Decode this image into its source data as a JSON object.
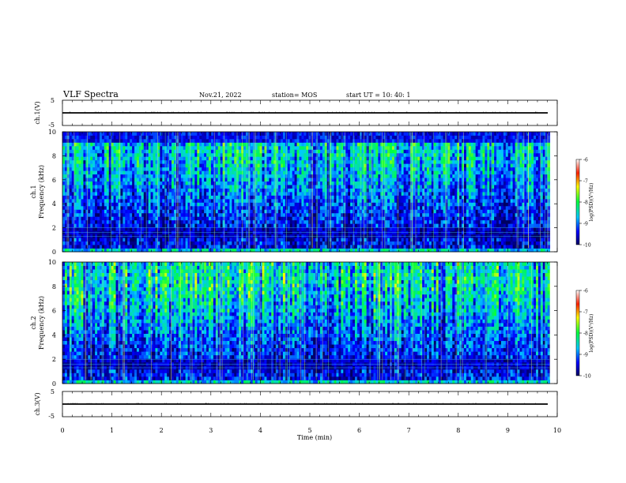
{
  "header": {
    "title": "VLF Spectra",
    "date": "Nov.21, 2022",
    "station": "station= MOS",
    "start": "start  UT  =   10: 40: 1"
  },
  "chart_data": [
    {
      "type": "line",
      "panel": "waveform-ch1",
      "ylabel": "ch.1(V)",
      "ylim": [
        -5,
        5
      ],
      "yticks": [
        "5",
        "-5"
      ],
      "xlim": [
        0,
        10
      ],
      "series": [
        {
          "values_description_level": 0
        }
      ]
    },
    {
      "type": "heatmap",
      "panel": "spectrogram-ch1",
      "ylabel": "ch.1",
      "ylabel2": "Frequency (kHz)",
      "ylim": [
        0,
        10
      ],
      "yticks": [
        "0",
        "2",
        "4",
        "6",
        "8",
        "10"
      ],
      "xlim": [
        0,
        9.85
      ],
      "band_top_khz": 9.2,
      "colorbar": {
        "label": "log(PSD)(V²/Hz)",
        "ticks": [
          "-6",
          "-7",
          "-8",
          "-9",
          "-10"
        ],
        "range": [
          -10,
          -6
        ]
      }
    },
    {
      "type": "heatmap",
      "panel": "spectrogram-ch2",
      "ylabel": "ch.2",
      "ylabel2": "Frequency (kHz)",
      "ylim": [
        0,
        10
      ],
      "yticks": [
        "0",
        "2",
        "4",
        "6",
        "8",
        "10"
      ],
      "xlim": [
        0,
        9.85
      ],
      "band_top_khz": 10,
      "colorbar": {
        "label": "log(PSD)(V²/Hz)",
        "ticks": [
          "-6",
          "-7",
          "-8",
          "-9",
          "-10"
        ],
        "range": [
          -10,
          -6
        ]
      }
    },
    {
      "type": "line",
      "panel": "waveform-ch3",
      "ylabel": "ch.3(V)",
      "ylim": [
        -5,
        5
      ],
      "yticks": [
        "5",
        "-5"
      ],
      "xlim": [
        0,
        10
      ]
    }
  ],
  "xaxis": {
    "label": "Time  (min)",
    "ticks": [
      "0",
      "1",
      "2",
      "3",
      "4",
      "5",
      "6",
      "7",
      "8",
      "9",
      "10"
    ]
  }
}
